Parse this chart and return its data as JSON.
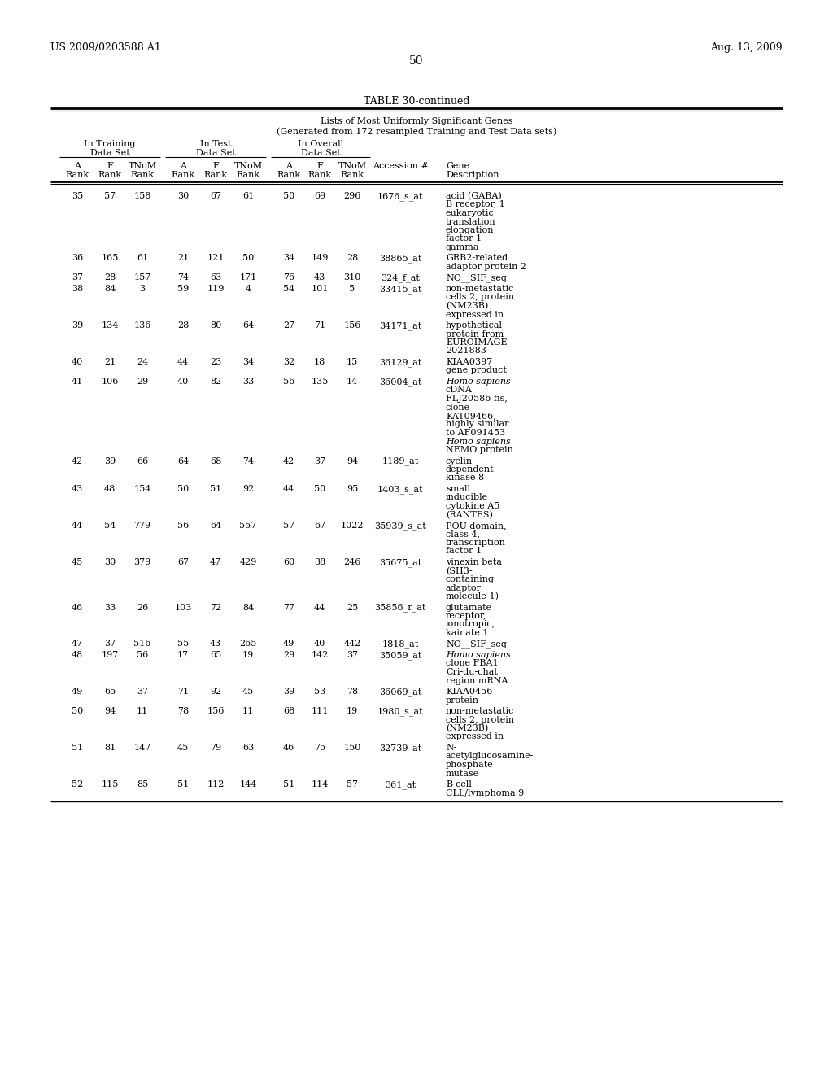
{
  "header_left": "US 2009/0203588 A1",
  "header_right": "Aug. 13, 2009",
  "page_number": "50",
  "table_title": "TABLE 30-continued",
  "subtitle_line1": "Lists of Most Uniformly Significant Genes",
  "subtitle_line2": "(Generated from 172 resampled Training and Test Data sets)",
  "rows": [
    [
      "35",
      "57",
      "158",
      "30",
      "67",
      "61",
      "50",
      "69",
      "296",
      "1676_s_at",
      "acid (GABA)\nB receptor, 1\neukaryotic\ntranslation\nelongation\nfactor 1\ngamma"
    ],
    [
      "36",
      "165",
      "61",
      "21",
      "121",
      "50",
      "34",
      "149",
      "28",
      "38865_at",
      "GRB2-related\nadaptor protein 2"
    ],
    [
      "37",
      "28",
      "157",
      "74",
      "63",
      "171",
      "76",
      "43",
      "310",
      "324_f_at",
      "NO__SIF_seq"
    ],
    [
      "38",
      "84",
      "3",
      "59",
      "119",
      "4",
      "54",
      "101",
      "5",
      "33415_at",
      "non-metastatic\ncells 2, protein\n(NM23B)\nexpressed in"
    ],
    [
      "39",
      "134",
      "136",
      "28",
      "80",
      "64",
      "27",
      "71",
      "156",
      "34171_at",
      "hypothetical\nprotein from\nEUROIMAGE\n2021883"
    ],
    [
      "40",
      "21",
      "24",
      "44",
      "23",
      "34",
      "32",
      "18",
      "15",
      "36129_at",
      "KIAA0397\ngene product"
    ],
    [
      "41",
      "106",
      "29",
      "40",
      "82",
      "33",
      "56",
      "135",
      "14",
      "36004_at",
      "Homo sapiens\ncDNA\nFLJ20586 fis,\nclone\nKAT09466,\nhighly similar\nto AF091453\nHomo sapiens\nNEMO protein"
    ],
    [
      "42",
      "39",
      "66",
      "64",
      "68",
      "74",
      "42",
      "37",
      "94",
      "1189_at",
      "cyclin-\ndependent\nkinase 8"
    ],
    [
      "43",
      "48",
      "154",
      "50",
      "51",
      "92",
      "44",
      "50",
      "95",
      "1403_s_at",
      "small\ninducible\ncytokine A5\n(RANTES)"
    ],
    [
      "44",
      "54",
      "779",
      "56",
      "64",
      "557",
      "57",
      "67",
      "1022",
      "35939_s_at",
      "POU domain,\nclass 4,\ntranscription\nfactor 1"
    ],
    [
      "45",
      "30",
      "379",
      "67",
      "47",
      "429",
      "60",
      "38",
      "246",
      "35675_at",
      "vinexin beta\n(SH3-\ncontaining\nadaptor\nmolecule-1)"
    ],
    [
      "46",
      "33",
      "26",
      "103",
      "72",
      "84",
      "77",
      "44",
      "25",
      "35856_r_at",
      "glutamate\nreceptor,\nionotropic,\nkainate 1"
    ],
    [
      "47",
      "37",
      "516",
      "55",
      "43",
      "265",
      "49",
      "40",
      "442",
      "1818_at",
      "NO__SIF_seq"
    ],
    [
      "48",
      "197",
      "56",
      "17",
      "65",
      "19",
      "29",
      "142",
      "37",
      "35059_at",
      "Homo sapiens\nclone FBA1\nCri-du-chat\nregion mRNA"
    ],
    [
      "49",
      "65",
      "37",
      "71",
      "92",
      "45",
      "39",
      "53",
      "78",
      "36069_at",
      "KIAA0456\nprotein"
    ],
    [
      "50",
      "94",
      "11",
      "78",
      "156",
      "11",
      "68",
      "111",
      "19",
      "1980_s_at",
      "non-metastatic\ncells 2, protein\n(NM23B)\nexpressed in"
    ],
    [
      "51",
      "81",
      "147",
      "45",
      "79",
      "63",
      "46",
      "75",
      "150",
      "32739_at",
      "N-\nacetylglucosamine-\nphosphate\nmutase"
    ],
    [
      "52",
      "115",
      "85",
      "51",
      "112",
      "144",
      "51",
      "114",
      "57",
      "361_at",
      "B-cell\nCLL/lymphoma 9"
    ]
  ],
  "bg_color": "#ffffff",
  "text_color": "#000000"
}
